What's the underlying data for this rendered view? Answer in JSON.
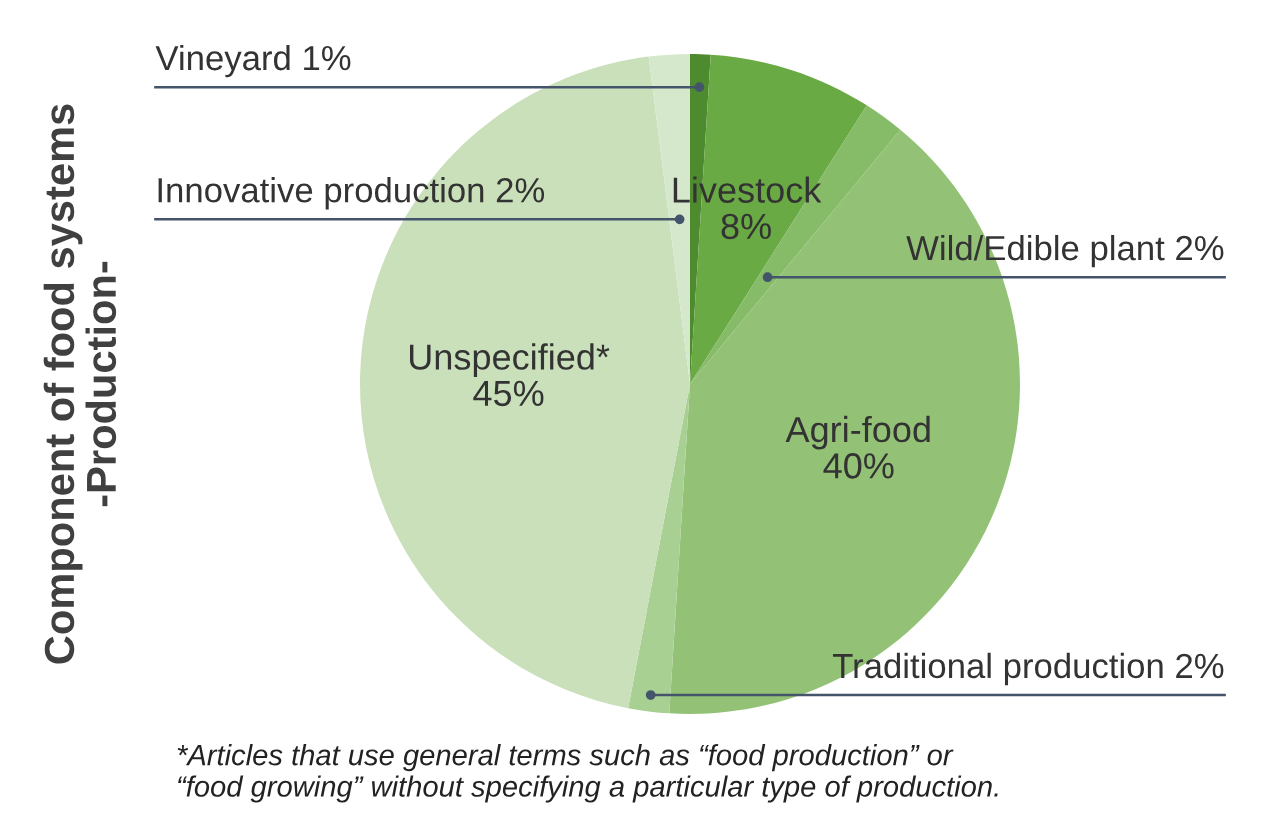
{
  "chart_data": {
    "type": "pie",
    "ylabel": "Component of food systems\n-Production-",
    "categories": [
      "Vineyard",
      "Livestock",
      "Wild/Edible plant",
      "Agri-food",
      "Traditional production",
      "Unspecified*",
      "Innovative production"
    ],
    "values": [
      1,
      8,
      2,
      40,
      2,
      45,
      2
    ],
    "value_labels": [
      "1%",
      "8%",
      "2%",
      "40%",
      "2%",
      "45%",
      "2%"
    ],
    "colors": [
      "#4e8a2e",
      "#6aaa44",
      "#86bb68",
      "#93c277",
      "#a9d093",
      "#c9e0ba",
      "#d6e8cb"
    ],
    "annotations": [
      "*Articles that use general terms such as “food production” or\n“food growing” without specifying a particular type of production."
    ]
  }
}
